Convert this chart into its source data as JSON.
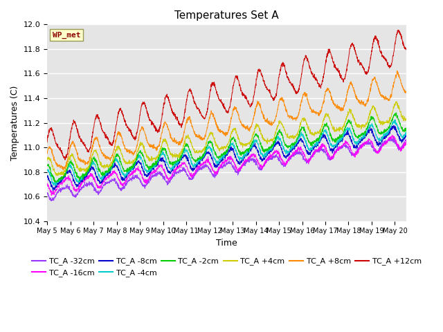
{
  "title": "Temperatures Set A",
  "xlabel": "Time",
  "ylabel": "Temperatures (C)",
  "ylim": [
    10.4,
    12.0
  ],
  "xlim_days": [
    0,
    15.5
  ],
  "xtick_labels": [
    "May 5",
    "May 6",
    "May 7",
    "May 8",
    "May 9",
    "May 10",
    "May 11",
    "May 12",
    "May 13",
    "May 14",
    "May 15",
    "May 16",
    "May 17",
    "May 18",
    "May 19",
    "May 20"
  ],
  "annotation_text": "WP_met",
  "annotation_color": "#8B0000",
  "annotation_bg": "#FFFFCC",
  "series": [
    {
      "label": "TC_A -32cm",
      "color": "#9933FF",
      "base_start": 10.62,
      "base_end": 11.05,
      "amplitude": 0.04,
      "phase": 3.2
    },
    {
      "label": "TC_A -16cm",
      "color": "#FF00FF",
      "base_start": 10.68,
      "base_end": 11.05,
      "amplitude": 0.05,
      "phase": 2.8
    },
    {
      "label": "TC_A -8cm",
      "color": "#0000CC",
      "base_start": 10.72,
      "base_end": 11.12,
      "amplitude": 0.055,
      "phase": 2.4
    },
    {
      "label": "TC_A -4cm",
      "color": "#00CCCC",
      "base_start": 10.75,
      "base_end": 11.15,
      "amplitude": 0.06,
      "phase": 2.0
    },
    {
      "label": "TC_A -2cm",
      "color": "#00CC00",
      "base_start": 10.77,
      "base_end": 11.2,
      "amplitude": 0.065,
      "phase": 1.6
    },
    {
      "label": "TC_A +4cm",
      "color": "#CCCC00",
      "base_start": 10.82,
      "base_end": 11.28,
      "amplitude": 0.07,
      "phase": 1.2
    },
    {
      "label": "TC_A +8cm",
      "color": "#FF8800",
      "base_start": 10.88,
      "base_end": 11.5,
      "amplitude": 0.09,
      "phase": 0.8
    },
    {
      "label": "TC_A +12cm",
      "color": "#CC0000",
      "base_start": 11.0,
      "base_end": 11.82,
      "amplitude": 0.12,
      "phase": 0.3
    }
  ],
  "n_points": 2000,
  "bg_color": "#E5E5E5",
  "grid_color": "white",
  "legend_fontsize": 8,
  "title_fontsize": 11,
  "tick_fontsize": 7,
  "ytick_fontsize": 8
}
